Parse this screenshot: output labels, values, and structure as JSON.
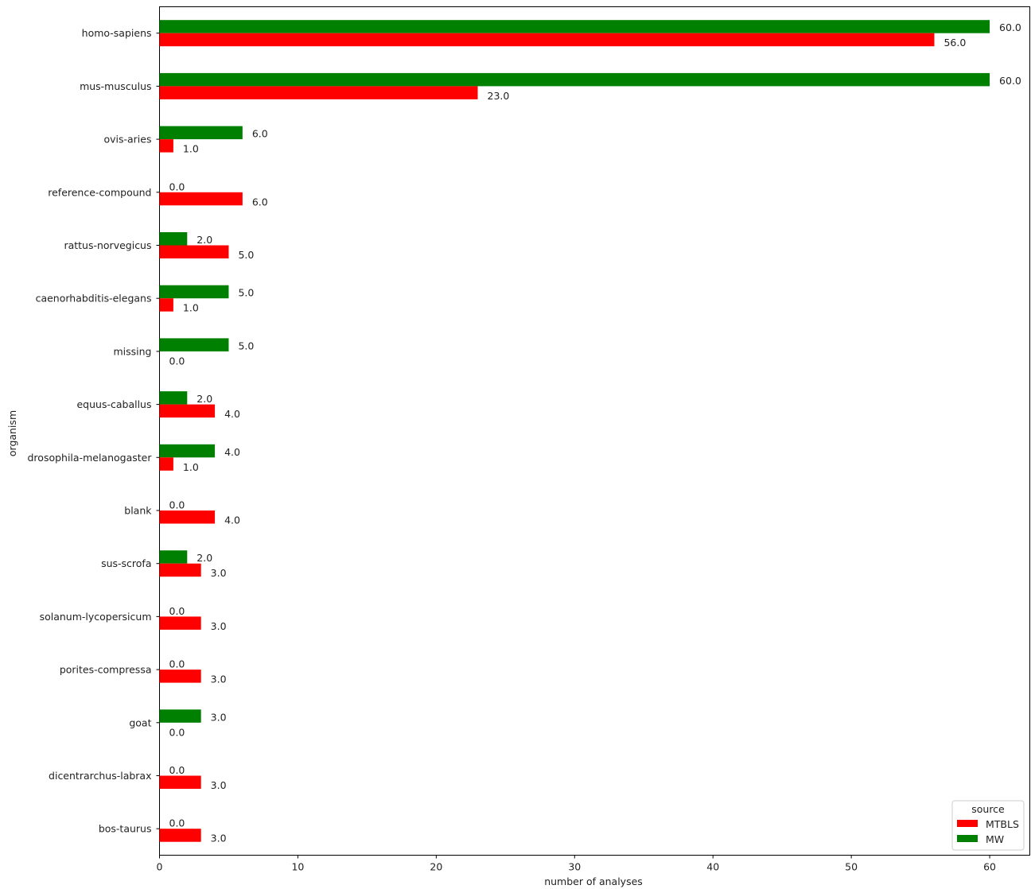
{
  "chart_data": {
    "type": "bar",
    "orientation": "horizontal",
    "title": "",
    "xlabel": "number of analyses",
    "ylabel": "organism",
    "xlim": [
      0,
      62.9
    ],
    "xticks": [
      0,
      10,
      20,
      30,
      40,
      50,
      60
    ],
    "grid": false,
    "categories": [
      "homo-sapiens",
      "mus-musculus",
      "ovis-aries",
      "reference-compound",
      "rattus-norvegicus",
      "caenorhabditis-elegans",
      "missing",
      "equus-caballus",
      "drosophila-melanogaster",
      "blank",
      "sus-scrofa",
      "solanum-lycopersicum",
      "porites-compressa",
      "goat",
      "dicentrarchus-labrax",
      "bos-taurus"
    ],
    "series": [
      {
        "name": "MTBLS",
        "color": "#ff0000",
        "values": [
          56,
          23,
          1,
          6,
          5,
          1,
          0,
          4,
          1,
          4,
          3,
          3,
          3,
          0,
          3,
          3
        ],
        "labels": [
          "56.0",
          "23.0",
          "1.0",
          "6.0",
          "5.0",
          "1.0",
          "0.0",
          "4.0",
          "1.0",
          "4.0",
          "3.0",
          "3.0",
          "3.0",
          "0.0",
          "3.0",
          "3.0"
        ]
      },
      {
        "name": "MW",
        "color": "#008000",
        "values": [
          60,
          60,
          6,
          0,
          2,
          5,
          5,
          2,
          4,
          0,
          2,
          0,
          0,
          3,
          0,
          0
        ],
        "labels": [
          "60.0",
          "60.0",
          "6.0",
          "0.0",
          "2.0",
          "5.0",
          "5.0",
          "2.0",
          "4.0",
          "0.0",
          "2.0",
          "0.0",
          "0.0",
          "3.0",
          "0.0",
          "0.0"
        ]
      }
    ],
    "legend": {
      "title": "source",
      "placement": "lower right"
    }
  }
}
